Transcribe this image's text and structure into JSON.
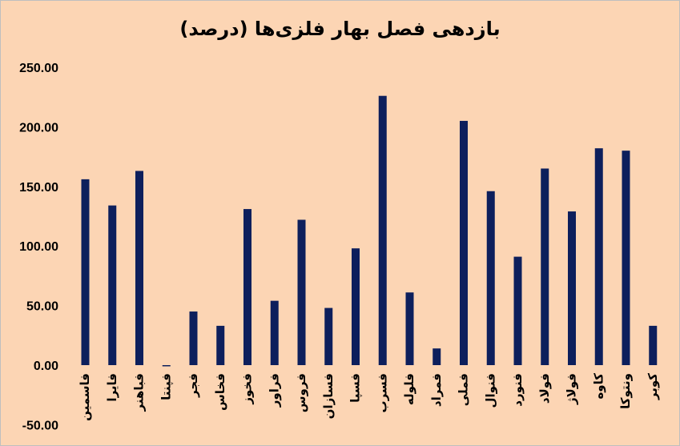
{
  "chart_data": {
    "type": "bar",
    "title": "بازدهی فصل بهار فلزی‌ها (درصد)",
    "xlabel": "",
    "ylabel": "",
    "ylim": [
      -50,
      250
    ],
    "yticks": [
      "250.00",
      "200.00",
      "150.00",
      "100.00",
      "50.00",
      "0.00",
      "-50.00"
    ],
    "ytick_values": [
      250,
      200,
      150,
      100,
      50,
      0,
      -50
    ],
    "grid": false,
    "legend": "none",
    "bar_color": "#0d1f5c",
    "background_color": "#fcd5b4",
    "categories": [
      "فاسمین",
      "فایرا",
      "فباهنر",
      "فپنتا",
      "فجر",
      "فخاس",
      "فخوز",
      "فراور",
      "فروس",
      "فسازان",
      "فسپا",
      "فسرب",
      "فلوله",
      "فمراد",
      "فملی",
      "فنوال",
      "فنورد",
      "فولاد",
      "فولاژ",
      "کاوه",
      "ونتوکا",
      "کوبر"
    ],
    "values": [
      156,
      134,
      163,
      -1,
      45,
      33,
      131,
      54,
      122,
      48,
      98,
      226,
      61,
      14,
      205,
      146,
      91,
      165,
      129,
      182,
      180,
      33
    ]
  }
}
